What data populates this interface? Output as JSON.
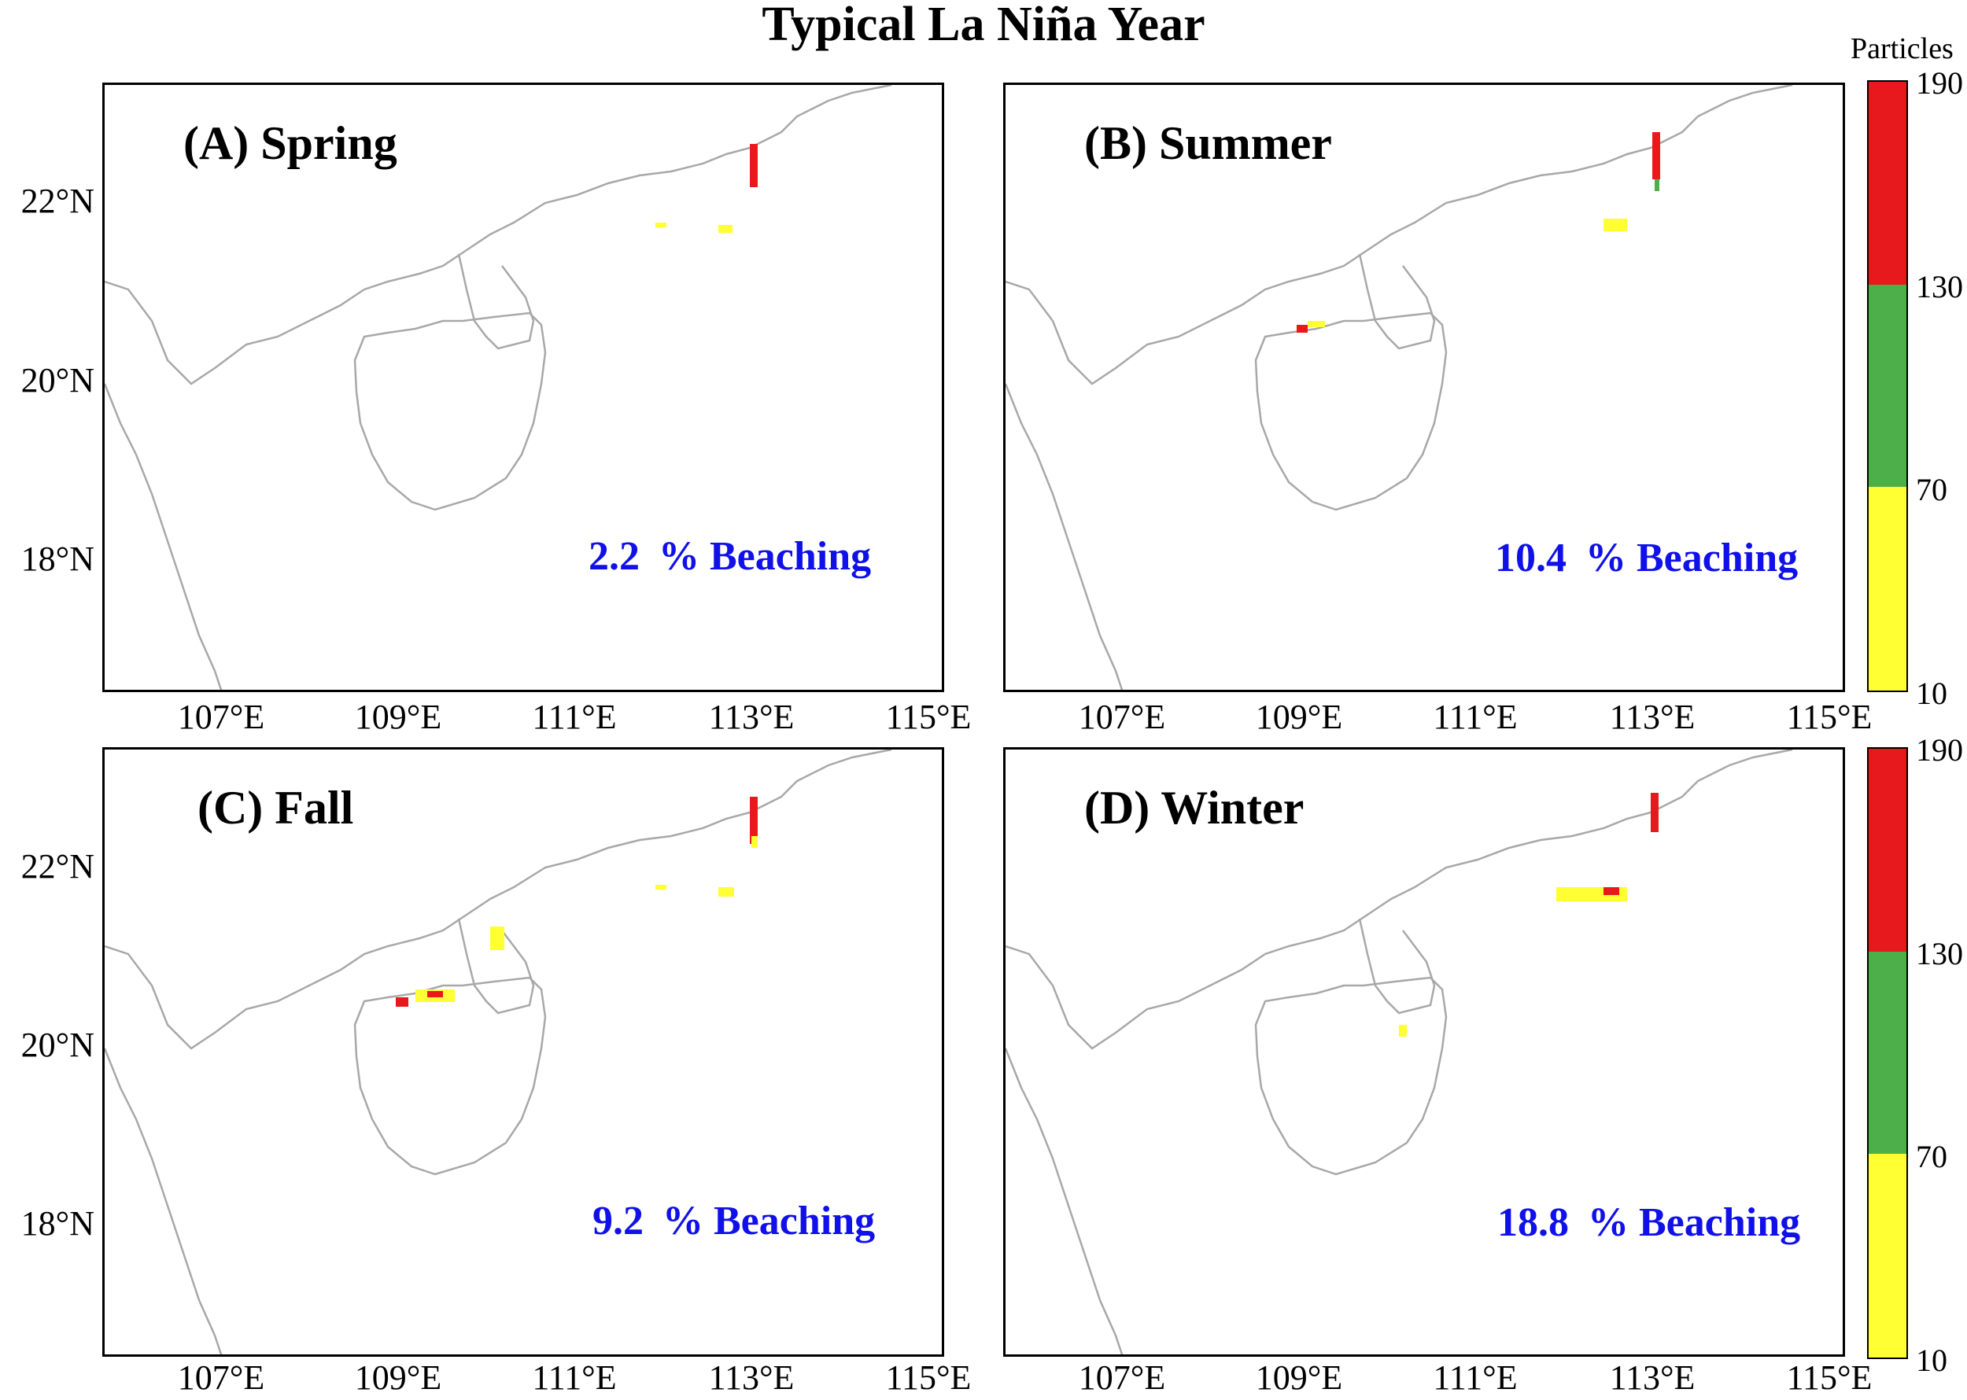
{
  "title": "Typical La Niña Year",
  "panels": [
    {
      "label": "(A) Spring",
      "beaching_pct": "2.2",
      "beaching_text": "% Beaching"
    },
    {
      "label": "(B) Summer",
      "beaching_pct": "10.4",
      "beaching_text": "% Beaching"
    },
    {
      "label": "(C) Fall",
      "beaching_pct": "9.2",
      "beaching_text": "% Beaching"
    },
    {
      "label": "(D) Winter",
      "beaching_pct": "18.8",
      "beaching_text": "% Beaching"
    }
  ],
  "y_ticks": [
    "22°N",
    "20°N",
    "18°N"
  ],
  "x_ticks": [
    "107°E",
    "109°E",
    "111°E",
    "113°E",
    "115°E"
  ],
  "colorbar": {
    "title": "Particles",
    "ticks": [
      "190",
      "130",
      "70",
      "10"
    ],
    "colors": {
      "high": "#e8191c",
      "mid": "#4caf4a",
      "low": "#ffff33"
    }
  },
  "colors": {
    "coast": "#a8a8a8",
    "beaching_text": "#1010e8"
  }
}
